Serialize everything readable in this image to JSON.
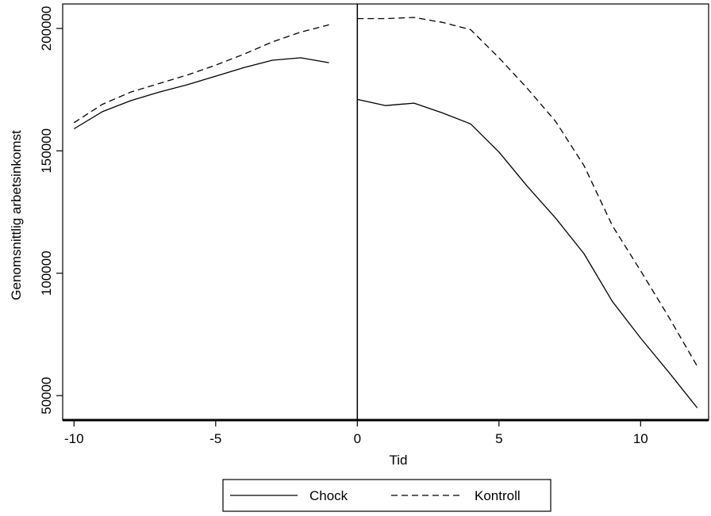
{
  "chart_data": {
    "type": "line",
    "title": "",
    "xlabel": "Tid",
    "ylabel": "Genomsnittlig arbetsinkomst",
    "xlim": [
      -10.4,
      12.4
    ],
    "ylim": [
      40000,
      210000
    ],
    "xticks": [
      -10,
      -5,
      0,
      5,
      10
    ],
    "yticks": [
      50000,
      100000,
      150000,
      200000
    ],
    "vline_x": 0,
    "grid": false,
    "legend_position": "bottom",
    "series": [
      {
        "name": "Chock",
        "style": "solid",
        "color": "#000000",
        "segments": [
          {
            "x": [
              -10,
              -9,
              -8,
              -7,
              -6,
              -5,
              -4,
              -3,
              -2,
              -1
            ],
            "y": [
              159000,
              166000,
              170500,
              174000,
              177000,
              180500,
              184000,
              187000,
              188000,
              186000
            ]
          },
          {
            "x": [
              0,
              1,
              2,
              3,
              4,
              5,
              6,
              7,
              8,
              9,
              10,
              11,
              12
            ],
            "y": [
              171000,
              168500,
              169500,
              165500,
              161000,
              149500,
              135500,
              122500,
              108000,
              88500,
              73500,
              59500,
              45000
            ]
          }
        ]
      },
      {
        "name": "Kontroll",
        "style": "dashed",
        "color": "#000000",
        "segments": [
          {
            "x": [
              -10,
              -9,
              -8,
              -7,
              -6,
              -5,
              -4,
              -3,
              -2,
              -1
            ],
            "y": [
              161500,
              169000,
              174000,
              177500,
              181000,
              185000,
              189500,
              194500,
              198500,
              201500
            ]
          },
          {
            "x": [
              0,
              1,
              2,
              3,
              4,
              5,
              6,
              7,
              8,
              9,
              10,
              11,
              12
            ],
            "y": [
              204000,
              204000,
              204500,
              202500,
              199500,
              188000,
              175500,
              162000,
              144000,
              119500,
              101000,
              82000,
              62000
            ]
          }
        ]
      }
    ]
  }
}
